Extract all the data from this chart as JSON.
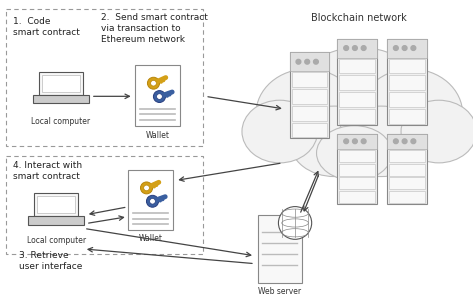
{
  "bg_color": "#ffffff",
  "label_blockchain": "Blockchain network",
  "text_label1": "1.  Code\nsmart contract",
  "text_label2": "2.  Send smart contract\nvia transaction to\nEthereum network",
  "text_label4": "4. Interact with\nsmart contract",
  "text_label3": "3. Retrieve\nuser interface",
  "label_local1": "Local computer",
  "label_local2": "Local computer",
  "label_wallet1": "Wallet",
  "label_wallet2": "Wallet",
  "label_webserver": "Web server"
}
